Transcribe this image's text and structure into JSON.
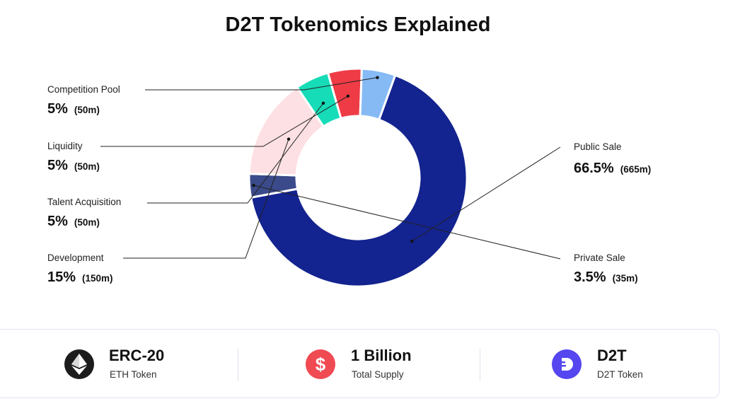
{
  "colors": {
    "public_sale": "#13238f",
    "private_sale": "#3a4a8a",
    "development": "#fde0e3",
    "talent_acquisition": "#16dcb7",
    "liquidity": "#ee3b45",
    "competition_pool": "#86baf5",
    "eth_icon_bg": "#1c1c1c",
    "supply_icon_bg": "#f04a52",
    "d2t_icon_bg": "#5546f0"
  },
  "chart_data": {
    "type": "pie",
    "title": "D2T Tokenomics Explained",
    "donut": true,
    "slices": [
      {
        "name": "Public Sale",
        "value": 66.5,
        "percent_label": "66.5%",
        "amount_label": "(665m)",
        "color_key": "public_sale"
      },
      {
        "name": "Private Sale",
        "value": 3.5,
        "percent_label": "3.5%",
        "amount_label": "(35m)",
        "color_key": "private_sale"
      },
      {
        "name": "Development",
        "value": 15,
        "percent_label": "15%",
        "amount_label": "(150m)",
        "color_key": "development"
      },
      {
        "name": "Talent Acquisition",
        "value": 5,
        "percent_label": "5%",
        "amount_label": "(50m)",
        "color_key": "talent_acquisition"
      },
      {
        "name": "Liquidity",
        "value": 5,
        "percent_label": "5%",
        "amount_label": "(50m)",
        "color_key": "liquidity"
      },
      {
        "name": "Competition Pool",
        "value": 5,
        "percent_label": "5%",
        "amount_label": "(50m)",
        "color_key": "competition_pool"
      }
    ]
  },
  "stats": [
    {
      "title": "ERC-20",
      "subtitle": "ETH Token",
      "icon": "ethereum-icon"
    },
    {
      "title": "1 Billion",
      "subtitle": "Total Supply",
      "icon": "dollar-icon"
    },
    {
      "title": "D2T",
      "subtitle": "D2T Token",
      "icon": "d2t-logo-icon"
    }
  ]
}
